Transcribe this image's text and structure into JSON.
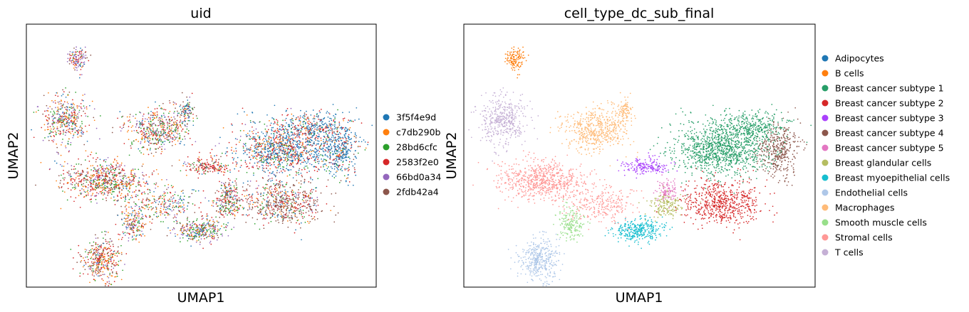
{
  "chart_data": [
    {
      "type": "scatter",
      "title": "uid",
      "xlabel": "UMAP1",
      "ylabel": "UMAP2",
      "legend_position": "right",
      "ticks": "none",
      "grid": false,
      "series": [
        {
          "name": "3f5f4e9d",
          "color": "#1f77b4"
        },
        {
          "name": "c7db290b",
          "color": "#ff7f0e"
        },
        {
          "name": "28bd6cfc",
          "color": "#2ca02c"
        },
        {
          "name": "2583f2e0",
          "color": "#d62728"
        },
        {
          "name": "66bd0a34",
          "color": "#9467bd"
        },
        {
          "name": "2fdb42a4",
          "color": "#8c564b"
        }
      ]
    },
    {
      "type": "scatter",
      "title": "cell_type_dc_sub_final",
      "xlabel": "UMAP1",
      "ylabel": "UMAP2",
      "legend_position": "right",
      "ticks": "none",
      "grid": false,
      "series": [
        {
          "name": "Adipocytes",
          "color": "#1f77b4"
        },
        {
          "name": "B cells",
          "color": "#ff7f0e"
        },
        {
          "name": "Breast cancer subtype 1",
          "color": "#279e68"
        },
        {
          "name": "Breast cancer subtype 2",
          "color": "#d62728"
        },
        {
          "name": "Breast cancer subtype 3",
          "color": "#aa40fc"
        },
        {
          "name": "Breast cancer subtype 4",
          "color": "#8c564b"
        },
        {
          "name": "Breast cancer subtype 5",
          "color": "#e377c2"
        },
        {
          "name": "Breast glandular cells",
          "color": "#b5bd61"
        },
        {
          "name": "Breast myoepithelial cells",
          "color": "#17becf"
        },
        {
          "name": "Endothelial cells",
          "color": "#aec7e8"
        },
        {
          "name": "Macrophages",
          "color": "#ffbb78"
        },
        {
          "name": "Smooth muscle cells",
          "color": "#98df8a"
        },
        {
          "name": "Stromal cells",
          "color": "#ff9896"
        },
        {
          "name": "T cells",
          "color": "#c5b0d5"
        }
      ]
    }
  ]
}
